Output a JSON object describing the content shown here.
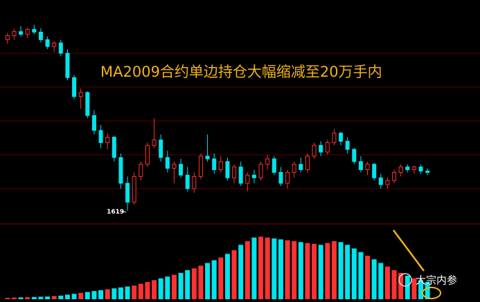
{
  "chart_data": {
    "type": "candlestick",
    "title": "MA2009合约单边持仓大幅缩减至20万手内",
    "watermark": "大宗内参",
    "open": [
      2250,
      2265,
      2280,
      2270,
      2288,
      2278,
      2250,
      2225,
      2238,
      2200,
      2110,
      2040,
      2055,
      1970,
      1915,
      1870,
      1890,
      1815,
      1720,
      1650,
      1745,
      1790,
      1860,
      1880,
      1815,
      1775,
      1790,
      1750,
      1700,
      1745,
      1820,
      1810,
      1770,
      1800,
      1740,
      1780,
      1720,
      1750,
      1740,
      1790,
      1810,
      1760,
      1720,
      1760,
      1790,
      1770,
      1820,
      1860,
      1835,
      1870,
      1905,
      1875,
      1845,
      1800,
      1770,
      1790,
      1740,
      1715,
      1730,
      1760,
      1780,
      1770,
      1780,
      1765
    ],
    "high": [
      2275,
      2290,
      2300,
      2295,
      2305,
      2292,
      2262,
      2245,
      2250,
      2215,
      2120,
      2070,
      2060,
      1990,
      1935,
      1905,
      1895,
      1830,
      1745,
      1760,
      1800,
      1870,
      1960,
      1900,
      1840,
      1800,
      1810,
      1780,
      1760,
      1830,
      1900,
      1830,
      1820,
      1815,
      1790,
      1800,
      1760,
      1770,
      1800,
      1825,
      1820,
      1780,
      1770,
      1800,
      1815,
      1830,
      1870,
      1875,
      1880,
      1920,
      1910,
      1890,
      1850,
      1820,
      1800,
      1795,
      1755,
      1740,
      1770,
      1790,
      1790,
      1785,
      1790,
      1775
    ],
    "low": [
      2235,
      2250,
      2262,
      2255,
      2270,
      2240,
      2215,
      2205,
      2190,
      2100,
      2030,
      1995,
      1960,
      1900,
      1850,
      1845,
      1800,
      1700,
      1619,
      1640,
      1730,
      1780,
      1850,
      1800,
      1760,
      1720,
      1740,
      1690,
      1685,
      1735,
      1800,
      1755,
      1760,
      1730,
      1720,
      1710,
      1690,
      1720,
      1730,
      1770,
      1750,
      1710,
      1700,
      1740,
      1760,
      1760,
      1810,
      1820,
      1825,
      1860,
      1860,
      1830,
      1790,
      1760,
      1750,
      1730,
      1700,
      1700,
      1720,
      1745,
      1760,
      1755,
      1755,
      1750
    ],
    "close": [
      2265,
      2280,
      2270,
      2288,
      2278,
      2250,
      2225,
      2238,
      2200,
      2110,
      2040,
      2055,
      1970,
      1915,
      1870,
      1890,
      1815,
      1720,
      1650,
      1745,
      1790,
      1860,
      1880,
      1815,
      1775,
      1790,
      1750,
      1700,
      1745,
      1820,
      1810,
      1770,
      1800,
      1740,
      1780,
      1720,
      1750,
      1740,
      1790,
      1810,
      1760,
      1720,
      1760,
      1790,
      1770,
      1820,
      1860,
      1835,
      1870,
      1905,
      1875,
      1845,
      1800,
      1770,
      1790,
      1740,
      1715,
      1730,
      1760,
      1780,
      1770,
      1780,
      1765,
      1760
    ],
    "volume": [
      15000,
      18000,
      20000,
      22000,
      25000,
      28000,
      30000,
      35000,
      40000,
      50000,
      60000,
      70000,
      80000,
      90000,
      100000,
      110000,
      120000,
      130000,
      140000,
      150000,
      170000,
      190000,
      210000,
      230000,
      250000,
      270000,
      290000,
      320000,
      340000,
      370000,
      400000,
      430000,
      460000,
      500000,
      540000,
      600000,
      640000,
      680000,
      690000,
      680000,
      670000,
      660000,
      650000,
      640000,
      630000,
      620000,
      610000,
      600000,
      620000,
      640000,
      630000,
      600000,
      560000,
      520000,
      480000,
      440000,
      400000,
      360000,
      320000,
      290000,
      260000,
      230000,
      210000,
      190000
    ],
    "ylim": [
      1580,
      2320
    ],
    "yticks": [
      1700,
      1825,
      1950,
      2075,
      2200
    ],
    "grid": true,
    "vlim": [
      0,
      800000
    ],
    "up_color": "#ff3232",
    "down_color": "#00e5ee",
    "grid_color": "#5a0000",
    "title_color": "#f2b21a"
  }
}
